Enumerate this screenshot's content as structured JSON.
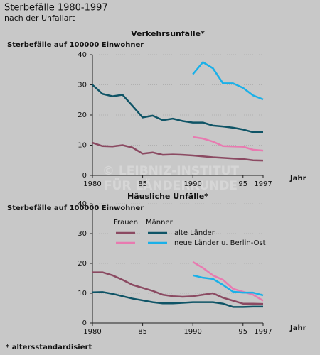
{
  "title": "Sterbefälle 1980-1997",
  "subtitle": "nach der Unfallart",
  "footnote": "* altersstandardisiert",
  "watermark": [
    "© LEIBNIZ-INSTITUT",
    "FÜR LÄNDERKUNDE"
  ],
  "chart_data": [
    {
      "type": "line",
      "title": "Verkehrsunfälle*",
      "ylabel": "Sterbefälle auf 100000 Einwohner",
      "xlabel": "Jahr",
      "x": [
        1980,
        1981,
        1982,
        1983,
        1984,
        1985,
        1986,
        1987,
        1988,
        1989,
        1990,
        1991,
        1992,
        1993,
        1994,
        1995,
        1996,
        1997
      ],
      "xlim": [
        1980,
        1997
      ],
      "ylim": [
        0,
        40
      ],
      "xticks": [
        1980,
        {
          "value": 1985,
          "label": "85"
        },
        1990,
        {
          "value": 1995,
          "label": "95"
        },
        1997
      ],
      "yticks": [
        0,
        10,
        20,
        30,
        40
      ],
      "grid": true,
      "series": [
        {
          "color": "#8b4a62",
          "values": [
            10.8,
            9.7,
            9.6,
            10,
            9.2,
            7.2,
            7.6,
            6.8,
            6.9,
            6.8,
            6.6,
            6.3,
            6,
            5.8,
            5.6,
            5.4,
            5,
            4.9
          ]
        },
        {
          "color": "#0f5466",
          "values": [
            30,
            27,
            26.2,
            26.7,
            23,
            19.2,
            19.8,
            18.3,
            18.8,
            18,
            17.5,
            17.5,
            16.5,
            16.2,
            15.8,
            15.2,
            14.3,
            14.3
          ]
        },
        {
          "color": "#e87ab0",
          "values": [
            null,
            null,
            null,
            null,
            null,
            null,
            null,
            null,
            null,
            null,
            12.7,
            12.2,
            11.2,
            9.7,
            9.6,
            9.5,
            8.5,
            8.2
          ]
        },
        {
          "color": "#1ab0e8",
          "values": [
            null,
            null,
            null,
            null,
            null,
            null,
            null,
            null,
            null,
            null,
            33.5,
            37.5,
            35.5,
            30.5,
            30.5,
            29,
            26.5,
            25.2
          ]
        }
      ]
    },
    {
      "type": "line",
      "title": "Häusliche Unfälle*",
      "ylabel": "Sterbefälle auf 100000 Einwohner",
      "xlabel": "Jahr",
      "x": [
        1980,
        1981,
        1982,
        1983,
        1984,
        1985,
        1986,
        1987,
        1988,
        1989,
        1990,
        1991,
        1992,
        1993,
        1994,
        1995,
        1996,
        1997
      ],
      "xlim": [
        1980,
        1997
      ],
      "ylim": [
        0,
        40
      ],
      "xticks": [
        1980,
        {
          "value": 1985,
          "label": "85"
        },
        1990,
        {
          "value": 1995,
          "label": "95"
        },
        1997
      ],
      "yticks": [
        0,
        10,
        20,
        30,
        40
      ],
      "grid": true,
      "legend": {
        "headers": [
          "Frauen",
          "Männer"
        ],
        "rows": [
          {
            "label": "alte Länder",
            "colors": [
              "#8b4a62",
              "#0f5466"
            ]
          },
          {
            "label": "neue Länder u. Berlin-Ost",
            "colors": [
              "#e87ab0",
              "#1ab0e8"
            ]
          }
        ]
      },
      "series": [
        {
          "color": "#8b4a62",
          "values": [
            17,
            17,
            16,
            14.5,
            12.8,
            11.8,
            10.8,
            9.5,
            9,
            8.8,
            9,
            9.5,
            10,
            8.5,
            7.5,
            6.5,
            6.5,
            6.4
          ]
        },
        {
          "color": "#0f5466",
          "values": [
            10.3,
            10.4,
            9.8,
            9,
            8.2,
            7.6,
            7,
            6.6,
            6.6,
            6.8,
            7,
            7,
            7,
            6.5,
            5.4,
            5.4,
            5.5,
            5.5
          ]
        },
        {
          "color": "#e87ab0",
          "values": [
            null,
            null,
            null,
            null,
            null,
            null,
            null,
            null,
            null,
            null,
            20.5,
            18.5,
            16,
            14.5,
            11.5,
            10.5,
            9.5,
            7.5
          ]
        },
        {
          "color": "#1ab0e8",
          "values": [
            null,
            null,
            null,
            null,
            null,
            null,
            null,
            null,
            null,
            null,
            16,
            15.2,
            14.8,
            12.8,
            10.5,
            10.2,
            10.2,
            9.3
          ]
        }
      ]
    }
  ]
}
